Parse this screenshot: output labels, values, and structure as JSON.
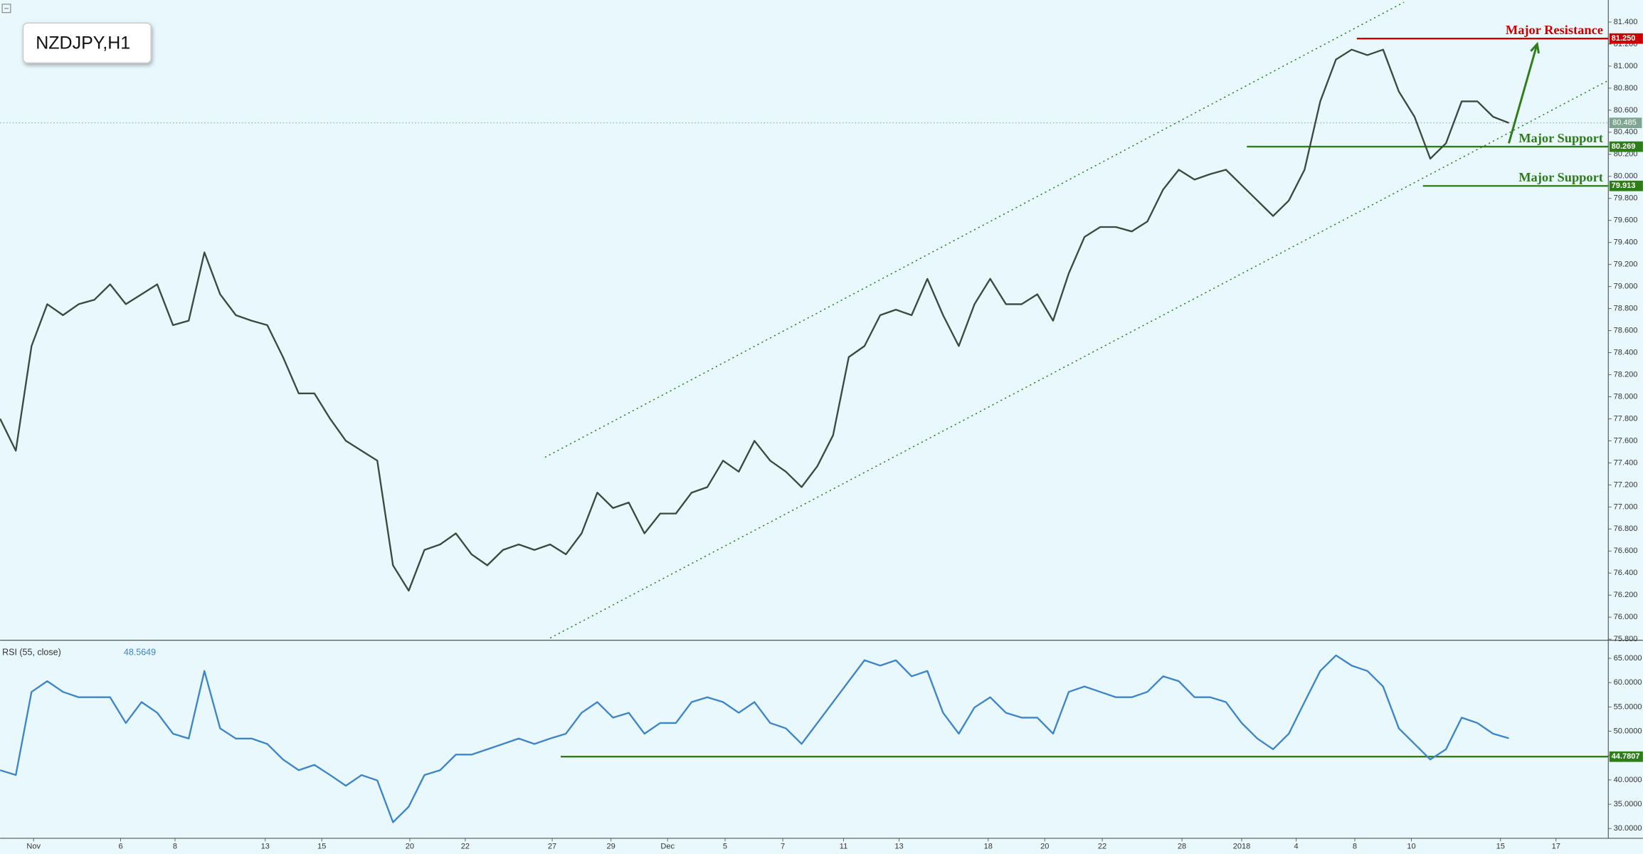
{
  "chart_data": [
    {
      "type": "line",
      "title": "NZDJPY,H1",
      "color": "#3b4a3f",
      "grid": false,
      "xlim": [
        0,
        102.33
      ],
      "ylim": [
        75.8,
        81.6
      ],
      "yticks": [
        {
          "value": 75.8,
          "label": "75.800"
        },
        {
          "value": 76,
          "label": "76.000"
        },
        {
          "value": 76.2,
          "label": "76.200"
        },
        {
          "value": 76.4,
          "label": "76.400"
        },
        {
          "value": 76.6,
          "label": "76.600"
        },
        {
          "value": 76.8,
          "label": "76.800"
        },
        {
          "value": 77,
          "label": "77.000"
        },
        {
          "value": 77.2,
          "label": "77.200"
        },
        {
          "value": 77.4,
          "label": "77.400"
        },
        {
          "value": 77.6,
          "label": "77.600"
        },
        {
          "value": 77.8,
          "label": "77.800"
        },
        {
          "value": 78,
          "label": "78.000"
        },
        {
          "value": 78.2,
          "label": "78.200"
        },
        {
          "value": 78.4,
          "label": "78.400"
        },
        {
          "value": 78.6,
          "label": "78.600"
        },
        {
          "value": 78.8,
          "label": "78.800"
        },
        {
          "value": 79,
          "label": "79.000"
        },
        {
          "value": 79.2,
          "label": "79.200"
        },
        {
          "value": 79.4,
          "label": "79.400"
        },
        {
          "value": 79.6,
          "label": "79.600"
        },
        {
          "value": 79.8,
          "label": "79.800"
        },
        {
          "value": 80,
          "label": "80.000"
        },
        {
          "value": 80.2,
          "label": "80.200"
        },
        {
          "value": 80.4,
          "label": "80.400"
        },
        {
          "value": 80.6,
          "label": "80.600"
        },
        {
          "value": 80.8,
          "label": "80.800"
        },
        {
          "value": 81,
          "label": "81.000"
        },
        {
          "value": 81.2,
          "label": "81.200"
        },
        {
          "value": 81.4,
          "label": "81.400"
        }
      ],
      "values": [
        77.8,
        77.51,
        78.46,
        78.84,
        78.74,
        78.84,
        78.88,
        79.02,
        78.84,
        78.93,
        79.02,
        78.65,
        78.69,
        79.31,
        78.93,
        78.74,
        78.69,
        78.65,
        78.36,
        78.03,
        78.03,
        77.8,
        77.6,
        77.51,
        77.42,
        76.47,
        76.24,
        76.61,
        76.66,
        76.76,
        76.57,
        76.47,
        76.61,
        76.66,
        76.61,
        76.66,
        76.57,
        76.76,
        77.13,
        76.99,
        77.04,
        76.76,
        76.94,
        76.94,
        77.13,
        77.18,
        77.42,
        77.32,
        77.6,
        77.42,
        77.32,
        77.18,
        77.37,
        77.65,
        78.36,
        78.46,
        78.74,
        78.79,
        78.74,
        79.07,
        78.74,
        78.46,
        78.84,
        79.07,
        78.84,
        78.84,
        78.93,
        78.69,
        79.12,
        79.45,
        79.54,
        79.54,
        79.5,
        79.59,
        79.88,
        80.06,
        79.97,
        80.02,
        80.06,
        79.92,
        79.78,
        79.64,
        79.78,
        80.06,
        80.68,
        81.06,
        81.15,
        81.1,
        81.15,
        80.77,
        80.54,
        80.16,
        80.3,
        80.68,
        80.68,
        80.54,
        80.485
      ],
      "current_price": {
        "value": 80.485,
        "label": "80.485"
      },
      "levels": [
        {
          "name": "Major Resistance",
          "value": 81.25,
          "label": "81.250",
          "color": "#cc0000",
          "x": [
            86.33,
            102.33
          ]
        },
        {
          "name": "Major Support",
          "value": 80.269,
          "label": "80.269",
          "color": "#2e7d1a",
          "x": [
            79.33,
            102.33
          ]
        },
        {
          "name": "Major Support",
          "value": 79.913,
          "label": "79.913",
          "color": "#2e7d1a",
          "x": [
            90.53,
            102.33
          ]
        }
      ],
      "channels": [
        {
          "x": [
            34.67,
            89.33
          ],
          "y": [
            77.45,
            81.58
          ]
        },
        {
          "x": [
            35,
            102.33
          ],
          "y": [
            75.81,
            80.87
          ]
        }
      ],
      "arrow": {
        "x": [
          96,
          97.8
        ],
        "y": [
          80.3,
          81.2
        ],
        "color": "#2e7d1a"
      }
    },
    {
      "type": "line",
      "title": "RSI (55, close)",
      "value_label": "48.5649",
      "color": "#3d85c6",
      "xlim": [
        0,
        102.33
      ],
      "ylim": [
        28,
        68.5
      ],
      "yticks": [
        {
          "value": 30,
          "label": "30.0000"
        },
        {
          "value": 35,
          "label": "35.0000"
        },
        {
          "value": 40,
          "label": "40.0000"
        },
        {
          "value": 45,
          "label": "45.0000"
        },
        {
          "value": 50,
          "label": "50.0000"
        },
        {
          "value": 55,
          "label": "55.0000"
        },
        {
          "value": 60,
          "label": "60.0000"
        },
        {
          "value": 65,
          "label": "65.0000"
        }
      ],
      "xticks": [
        {
          "value": 2.13,
          "label": "Nov"
        },
        {
          "value": 7.67,
          "label": "6"
        },
        {
          "value": 11.13,
          "label": "8"
        },
        {
          "value": 16.87,
          "label": "13"
        },
        {
          "value": 20.47,
          "label": "15"
        },
        {
          "value": 26.07,
          "label": "20"
        },
        {
          "value": 29.6,
          "label": "22"
        },
        {
          "value": 35.13,
          "label": "27"
        },
        {
          "value": 38.87,
          "label": "29"
        },
        {
          "value": 42.47,
          "label": "Dec"
        },
        {
          "value": 46.13,
          "label": "5"
        },
        {
          "value": 49.8,
          "label": "7"
        },
        {
          "value": 53.67,
          "label": "11"
        },
        {
          "value": 57.2,
          "label": "13"
        },
        {
          "value": 62.87,
          "label": "18"
        },
        {
          "value": 66.47,
          "label": "20"
        },
        {
          "value": 70.13,
          "label": "22"
        },
        {
          "value": 75.2,
          "label": "28"
        },
        {
          "value": 79,
          "label": "2018"
        },
        {
          "value": 82.47,
          "label": "4"
        },
        {
          "value": 86.2,
          "label": "8"
        },
        {
          "value": 89.8,
          "label": "10"
        },
        {
          "value": 95.47,
          "label": "15"
        },
        {
          "value": 99,
          "label": "17"
        }
      ],
      "values": [
        42,
        41,
        58.1,
        60.3,
        58.1,
        57,
        57,
        57,
        51.7,
        56,
        53.8,
        49.5,
        48.5,
        62.4,
        50.6,
        48.5,
        48.5,
        47.4,
        44.2,
        42,
        43.1,
        41,
        38.8,
        41,
        39.9,
        31.3,
        34.5,
        41,
        42,
        45.2,
        45.2,
        46.3,
        47.4,
        48.5,
        47.4,
        48.5,
        49.5,
        53.8,
        56,
        52.8,
        53.8,
        49.5,
        51.7,
        51.7,
        56,
        57,
        56,
        53.8,
        56,
        51.7,
        50.6,
        47.4,
        51.7,
        56,
        60.3,
        64.6,
        63.5,
        64.6,
        61.3,
        62.4,
        53.8,
        49.5,
        54.9,
        57,
        53.8,
        52.8,
        52.8,
        49.5,
        58.1,
        59.2,
        58.1,
        57,
        57,
        58.1,
        61.3,
        60.3,
        57,
        57,
        56,
        51.7,
        48.5,
        46.3,
        49.5,
        56,
        62.4,
        65.6,
        63.5,
        62.4,
        59.2,
        50.6,
        47.4,
        44.2,
        46.3,
        52.8,
        51.7,
        49.5,
        48.5649
      ],
      "level": {
        "value": 44.7807,
        "label": "44.7807",
        "color": "#2e7d1a",
        "x": [
          35.67,
          102.33
        ]
      }
    }
  ]
}
